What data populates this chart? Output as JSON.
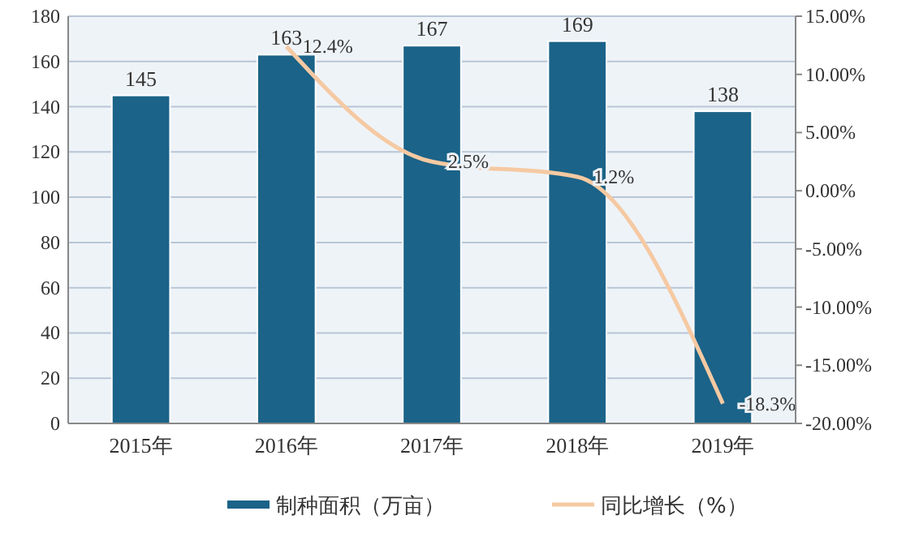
{
  "chart_data": {
    "type": "bar",
    "categories": [
      "2015年",
      "2016年",
      "2017年",
      "2018年",
      "2019年"
    ],
    "series": [
      {
        "name": "制种面积（万亩）",
        "color": "#1b6388",
        "values": [
          145,
          163,
          167,
          169,
          138
        ],
        "value_labels": [
          "145",
          "163",
          "167",
          "169",
          "138"
        ]
      },
      {
        "name": "同比增长（%）",
        "type": "line",
        "axis": "y2",
        "color": "#f5c9a2",
        "values": [
          null,
          12.4,
          2.5,
          1.2,
          -18.3
        ],
        "value_labels": [
          null,
          "12.4%",
          "2.5%",
          "1.2%",
          "-18.3%"
        ]
      }
    ],
    "ylim": [
      0,
      180
    ],
    "yticks": [
      0,
      20,
      40,
      60,
      80,
      100,
      120,
      140,
      160,
      180
    ],
    "y2lim": [
      -20,
      15
    ],
    "y2ticks": [
      {
        "value": 15,
        "label": "15.00%"
      },
      {
        "value": 10,
        "label": "10.00%"
      },
      {
        "value": 5,
        "label": "5.00%"
      },
      {
        "value": 0,
        "label": "0.00%"
      },
      {
        "value": -5,
        "label": "-5.00%"
      },
      {
        "value": -10,
        "label": "-10.00%"
      },
      {
        "value": -15,
        "label": "-15.00%"
      },
      {
        "value": -20,
        "label": "-20.00%"
      }
    ],
    "grid": "y",
    "legend": "bottom",
    "marker": "none",
    "line_style": "solid"
  }
}
